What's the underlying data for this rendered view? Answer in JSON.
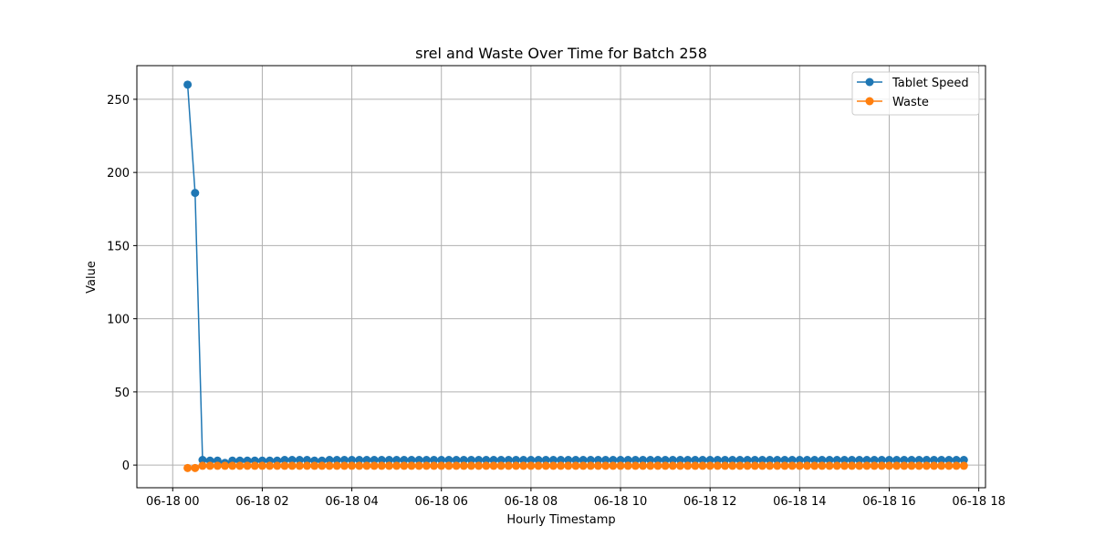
{
  "chart_data": {
    "type": "line",
    "title": "srel and Waste Over Time for Batch 258",
    "xlabel": "Hourly Timestamp",
    "ylabel": "Value",
    "x_tick_labels": [
      "06-18 00",
      "06-18 02",
      "06-18 04",
      "06-18 06",
      "06-18 08",
      "06-18 10",
      "06-18 12",
      "06-18 14",
      "06-18 16",
      "06-18 18"
    ],
    "x_tick_hours": [
      0,
      2,
      4,
      6,
      8,
      10,
      12,
      14,
      16,
      18
    ],
    "xlim_hours": [
      -0.8,
      18.15
    ],
    "y_ticks": [
      0,
      50,
      100,
      150,
      200,
      250
    ],
    "ylim": [
      -15.5,
      273
    ],
    "grid": true,
    "legend_position": "top-right",
    "x_start": "06-18 00:20",
    "x_step_minutes": 10,
    "series": [
      {
        "name": "Tablet Speed",
        "color": "#1f77b4",
        "values": [
          260,
          186,
          3.5,
          3,
          3,
          1.5,
          3,
          3,
          3,
          3,
          3,
          3,
          3,
          3.5,
          3.5,
          3.5,
          3.5,
          3,
          3,
          3.5,
          3.5,
          3.5,
          3.5,
          3.5,
          3.5,
          3.5,
          3.5,
          3.5,
          3.5,
          3.5,
          3.5,
          3.5,
          3.5,
          3.5,
          3.5,
          3.5,
          3.5,
          3.5,
          3.5,
          3.5,
          3.5,
          3.5,
          3.5,
          3.5,
          3.5,
          3.5,
          3.5,
          3.5,
          3.5,
          3.5,
          3.5,
          3.5,
          3.5,
          3.5,
          3.5,
          3.5,
          3.5,
          3.5,
          3.5,
          3.5,
          3.5,
          3.5,
          3.5,
          3.5,
          3.5,
          3.5,
          3.5,
          3.5,
          3.5,
          3.5,
          3.5,
          3.5,
          3.5,
          3.5,
          3.5,
          3.5,
          3.5,
          3.5,
          3.5,
          3.5,
          3.5,
          3.5,
          3.5,
          3.5,
          3.5,
          3.5,
          3.5,
          3.5,
          3.5,
          3.5,
          3.5,
          3.5,
          3.5,
          3.5,
          3.5,
          3.5,
          3.5,
          3.5,
          3.5,
          3.5,
          3.5,
          3.5,
          3.5,
          3.5,
          3.5
        ]
      },
      {
        "name": "Waste",
        "color": "#ff7f0e",
        "values": [
          -2,
          -2,
          -0.5,
          -0.5,
          -0.5,
          -0.5,
          -0.5,
          -0.5,
          -0.5,
          -0.5,
          -0.5,
          -0.5,
          -0.5,
          -0.5,
          -0.5,
          -0.5,
          -0.5,
          -0.5,
          -0.5,
          -0.5,
          -0.5,
          -0.5,
          -0.5,
          -0.5,
          -0.5,
          -0.5,
          -0.5,
          -0.5,
          -0.5,
          -0.5,
          -0.5,
          -0.5,
          -0.5,
          -0.5,
          -0.5,
          -0.5,
          -0.5,
          -0.5,
          -0.5,
          -0.5,
          -0.5,
          -0.5,
          -0.5,
          -0.5,
          -0.5,
          -0.5,
          -0.5,
          -0.5,
          -0.5,
          -0.5,
          -0.5,
          -0.5,
          -0.5,
          -0.5,
          -0.5,
          -0.5,
          -0.5,
          -0.5,
          -0.5,
          -0.5,
          -0.5,
          -0.5,
          -0.5,
          -0.5,
          -0.5,
          -0.5,
          -0.5,
          -0.5,
          -0.5,
          -0.5,
          -0.5,
          -0.5,
          -0.5,
          -0.5,
          -0.5,
          -0.5,
          -0.5,
          -0.5,
          -0.5,
          -0.5,
          -0.5,
          -0.5,
          -0.5,
          -0.5,
          -0.5,
          -0.5,
          -0.5,
          -0.5,
          -0.5,
          -0.5,
          -0.5,
          -0.5,
          -0.5,
          -0.5,
          -0.5,
          -0.5,
          -0.5,
          -0.5,
          -0.5,
          -0.5,
          -0.5,
          -0.5,
          -0.5,
          -0.5,
          -0.5
        ]
      }
    ]
  }
}
